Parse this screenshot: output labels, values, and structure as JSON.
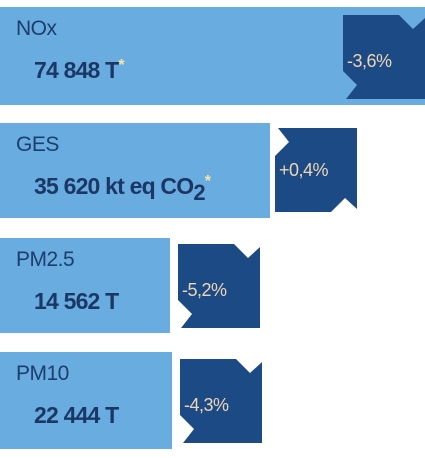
{
  "items": [
    {
      "label": "NOx",
      "value": "74 848 T",
      "note": "*",
      "change": "-3,6%",
      "direction": "down"
    },
    {
      "label": "GES",
      "value": "35 620 kt eq CO",
      "subscript": "2",
      "note": "*",
      "change": "+0,4%",
      "direction": "up"
    },
    {
      "label": "PM2.5",
      "value": "14 562 T",
      "change": "-5,2%",
      "direction": "down"
    },
    {
      "label": "PM10",
      "value": "22 444 T",
      "change": "-4,3%",
      "direction": "down"
    }
  ]
}
